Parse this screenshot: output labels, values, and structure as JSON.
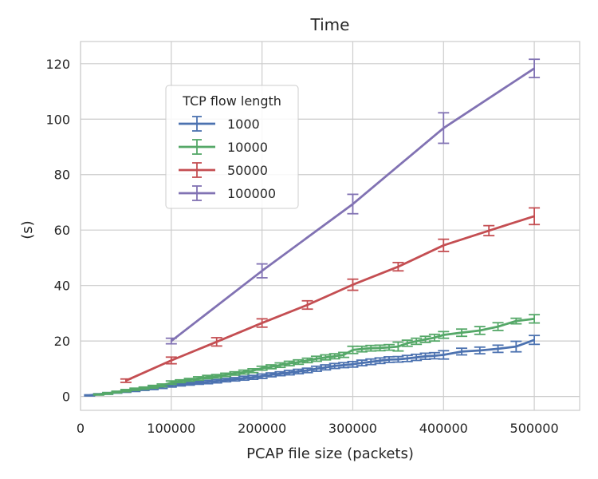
{
  "chart_data": {
    "type": "line",
    "title": "Time",
    "xlabel": "PCAP file size (packets)",
    "ylabel": "(s)",
    "xlim": [
      0,
      550000
    ],
    "ylim": [
      -5,
      128
    ],
    "xticks": [
      0,
      100000,
      200000,
      300000,
      400000,
      500000
    ],
    "xtick_labels": [
      "0",
      "100000",
      "200000",
      "300000",
      "400000",
      "500000"
    ],
    "yticks": [
      0,
      20,
      40,
      60,
      80,
      100,
      120
    ],
    "ytick_labels": [
      "0",
      "20",
      "40",
      "60",
      "80",
      "100",
      "120"
    ],
    "grid": true,
    "legend": {
      "title": "TCP flow length",
      "placement": "upper-left inside"
    },
    "series": [
      {
        "name": "1000",
        "color": "#4c72b0",
        "x": [
          10000,
          20000,
          30000,
          40000,
          50000,
          60000,
          70000,
          80000,
          90000,
          100000,
          110000,
          120000,
          130000,
          140000,
          150000,
          160000,
          170000,
          180000,
          190000,
          200000,
          210000,
          220000,
          230000,
          240000,
          250000,
          260000,
          270000,
          280000,
          290000,
          300000,
          310000,
          320000,
          330000,
          340000,
          350000,
          360000,
          370000,
          380000,
          390000,
          400000,
          420000,
          440000,
          460000,
          480000,
          500000
        ],
        "y": [
          0.4,
          0.8,
          1.1,
          1.5,
          1.8,
          2.2,
          2.6,
          3.0,
          3.4,
          4.0,
          4.3,
          4.6,
          4.9,
          5.2,
          5.5,
          5.9,
          6.2,
          6.6,
          6.9,
          7.3,
          7.8,
          8.2,
          8.6,
          9.0,
          9.4,
          10.0,
          10.5,
          11.0,
          11.3,
          11.6,
          12.1,
          12.5,
          12.9,
          13.3,
          13.4,
          13.7,
          14.1,
          14.5,
          14.7,
          15.0,
          16.2,
          16.6,
          17.2,
          18.0,
          20.4
        ],
        "err": [
          0.2,
          0.2,
          0.3,
          0.3,
          0.3,
          0.4,
          0.4,
          0.5,
          0.5,
          0.6,
          0.5,
          0.5,
          0.5,
          0.6,
          0.6,
          0.6,
          0.6,
          0.7,
          0.7,
          0.8,
          0.7,
          0.7,
          0.8,
          0.8,
          0.8,
          0.9,
          0.9,
          0.9,
          0.9,
          1.0,
          1.0,
          1.0,
          1.0,
          1.0,
          1.0,
          1.1,
          1.1,
          1.1,
          1.1,
          1.5,
          1.2,
          1.2,
          1.3,
          1.9,
          1.6
        ]
      },
      {
        "name": "10000",
        "color": "#55a868",
        "x": [
          20000,
          30000,
          40000,
          50000,
          60000,
          70000,
          80000,
          90000,
          100000,
          110000,
          120000,
          130000,
          140000,
          150000,
          160000,
          170000,
          180000,
          190000,
          200000,
          210000,
          220000,
          230000,
          240000,
          250000,
          260000,
          270000,
          280000,
          290000,
          300000,
          310000,
          320000,
          330000,
          340000,
          350000,
          360000,
          370000,
          380000,
          390000,
          400000,
          420000,
          440000,
          460000,
          480000,
          500000
        ],
        "y": [
          0.7,
          1.1,
          1.6,
          2.1,
          2.6,
          3.0,
          3.5,
          4.0,
          5.0,
          5.5,
          6.0,
          6.5,
          7.0,
          7.3,
          7.8,
          8.3,
          8.8,
          9.3,
          10.2,
          10.7,
          11.3,
          11.9,
          12.4,
          13.0,
          13.6,
          14.1,
          14.5,
          15.0,
          16.8,
          17.1,
          17.4,
          17.5,
          17.7,
          18.0,
          19.2,
          19.9,
          20.6,
          21.2,
          22.2,
          23.0,
          23.8,
          25.2,
          27.2,
          28.0
        ],
        "err": [
          0.2,
          0.3,
          0.3,
          0.4,
          0.4,
          0.4,
          0.5,
          0.5,
          0.6,
          0.5,
          0.5,
          0.6,
          0.6,
          0.6,
          0.6,
          0.6,
          0.7,
          0.7,
          0.7,
          0.7,
          0.8,
          0.8,
          0.8,
          0.8,
          0.9,
          0.9,
          0.9,
          0.9,
          1.3,
          1.0,
          1.0,
          1.0,
          1.0,
          1.6,
          1.1,
          1.1,
          1.1,
          1.2,
          1.2,
          1.3,
          1.4,
          1.4,
          1.0,
          1.5
        ]
      },
      {
        "name": "50000",
        "color": "#c44e52",
        "x": [
          50000,
          100000,
          150000,
          200000,
          250000,
          300000,
          350000,
          400000,
          450000,
          500000
        ],
        "y": [
          5.7,
          13.0,
          19.7,
          26.5,
          33.0,
          40.3,
          46.8,
          54.5,
          59.8,
          65.0
        ],
        "err": [
          0.6,
          1.2,
          1.5,
          1.5,
          1.5,
          2.0,
          1.5,
          2.2,
          1.8,
          3.0
        ]
      },
      {
        "name": "100000",
        "color": "#8172b3",
        "x": [
          100000,
          200000,
          300000,
          400000,
          500000
        ],
        "y": [
          20.0,
          45.3,
          69.4,
          96.8,
          118.3
        ],
        "err": [
          1.0,
          2.5,
          3.5,
          5.5,
          3.3
        ]
      }
    ]
  }
}
